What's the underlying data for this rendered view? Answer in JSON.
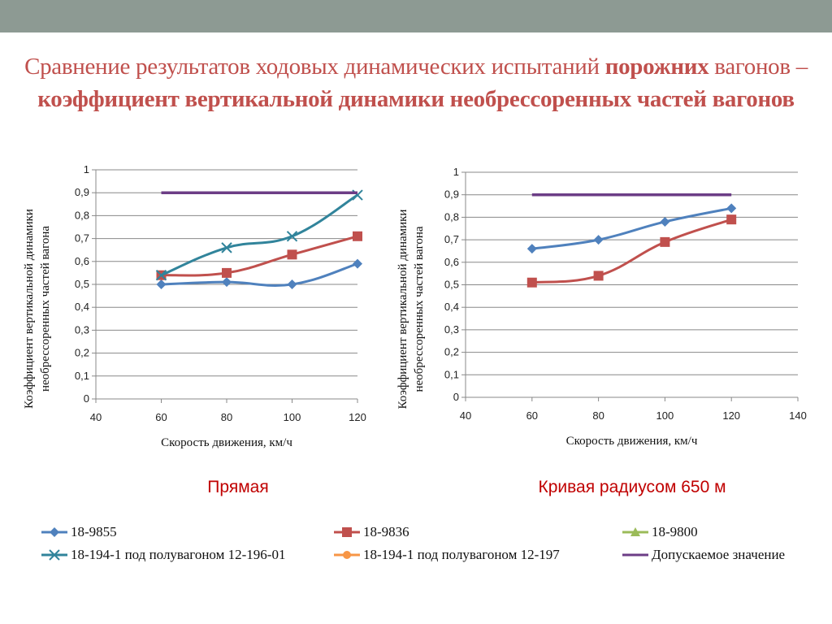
{
  "slide": {
    "title_part1": "Сравнение результатов ходовых динамических испытаний ",
    "title_bold1": "порожних",
    "title_part2": " вагонов – ",
    "title_bold2": "коэффициент вертикальной динамики необрессоренных частей вагонов"
  },
  "colors": {
    "title": "#c0504d",
    "caption": "#c00000",
    "top_bar": "#8d9a93"
  },
  "chart_data": [
    {
      "type": "line",
      "caption": "Прямая",
      "xlabel": "Скорость движения, км/ч",
      "ylabel_line1": "Коэффициент вертикальной динамики",
      "ylabel_line2": "необрессоренных частей вагона",
      "xlim": [
        40,
        120
      ],
      "ylim": [
        0,
        1
      ],
      "x_ticks": [
        "40",
        "60",
        "80",
        "100",
        "120"
      ],
      "y_ticks": [
        "0",
        "0,1",
        "0,2",
        "0,3",
        "0,4",
        "0,5",
        "0,6",
        "0,7",
        "0,8",
        "0,9",
        "1"
      ],
      "grid": true,
      "series": [
        {
          "name": "18-9855",
          "color": "#4f81bd",
          "marker": "diamond",
          "x": [
            60,
            80,
            100,
            120
          ],
          "y": [
            0.5,
            0.51,
            0.5,
            0.59
          ]
        },
        {
          "name": "18-9836",
          "color": "#c0504d",
          "marker": "square",
          "x": [
            60,
            80,
            100,
            120
          ],
          "y": [
            0.54,
            0.55,
            0.63,
            0.71
          ]
        },
        {
          "name": "18-194-1 под полувагоном 12-196-01",
          "color": "#31849b",
          "marker": "x",
          "x": [
            60,
            80,
            100,
            120
          ],
          "y": [
            0.54,
            0.66,
            0.71,
            0.89
          ]
        },
        {
          "name": "Допускаемое значение",
          "color": "#6c3d86",
          "marker": "none",
          "x": [
            60,
            120
          ],
          "y": [
            0.9,
            0.9
          ]
        }
      ]
    },
    {
      "type": "line",
      "caption": "Кривая радиусом 650 м",
      "xlabel": "Скорость движения, км/ч",
      "ylabel_line1": "Коэффициент вертикальной динамики",
      "ylabel_line2": "необрессоренных частей вагона",
      "xlim": [
        40,
        140
      ],
      "ylim": [
        0,
        1
      ],
      "x_ticks": [
        "40",
        "60",
        "80",
        "100",
        "120",
        "140"
      ],
      "y_ticks": [
        "0",
        "0,1",
        "0,2",
        "0,3",
        "0,4",
        "0,5",
        "0,6",
        "0,7",
        "0,8",
        "0,9",
        "1"
      ],
      "grid": true,
      "series": [
        {
          "name": "18-9855",
          "color": "#4f81bd",
          "marker": "diamond",
          "x": [
            60,
            80,
            100,
            120
          ],
          "y": [
            0.66,
            0.7,
            0.78,
            0.84
          ]
        },
        {
          "name": "18-9836",
          "color": "#c0504d",
          "marker": "square",
          "x": [
            60,
            80,
            100,
            120
          ],
          "y": [
            0.51,
            0.54,
            0.69,
            0.79
          ]
        },
        {
          "name": "Допускаемое значение",
          "color": "#6c3d86",
          "marker": "none",
          "x": [
            60,
            120
          ],
          "y": [
            0.9,
            0.9
          ]
        }
      ]
    }
  ],
  "legend": [
    {
      "label": "18-9855",
      "color": "#4f81bd",
      "marker": "diamond"
    },
    {
      "label": "18-9836",
      "color": "#c0504d",
      "marker": "square"
    },
    {
      "label": "18-9800",
      "color": "#9bbb59",
      "marker": "triangle"
    },
    {
      "label": "18-194-1 под полувагоном 12-196-01",
      "color": "#31849b",
      "marker": "x"
    },
    {
      "label": "18-194-1 под полувагоном 12-197",
      "color": "#f79646",
      "marker": "circle"
    },
    {
      "label": "Допускаемое значение",
      "color": "#6c3d86",
      "marker": "none"
    }
  ]
}
